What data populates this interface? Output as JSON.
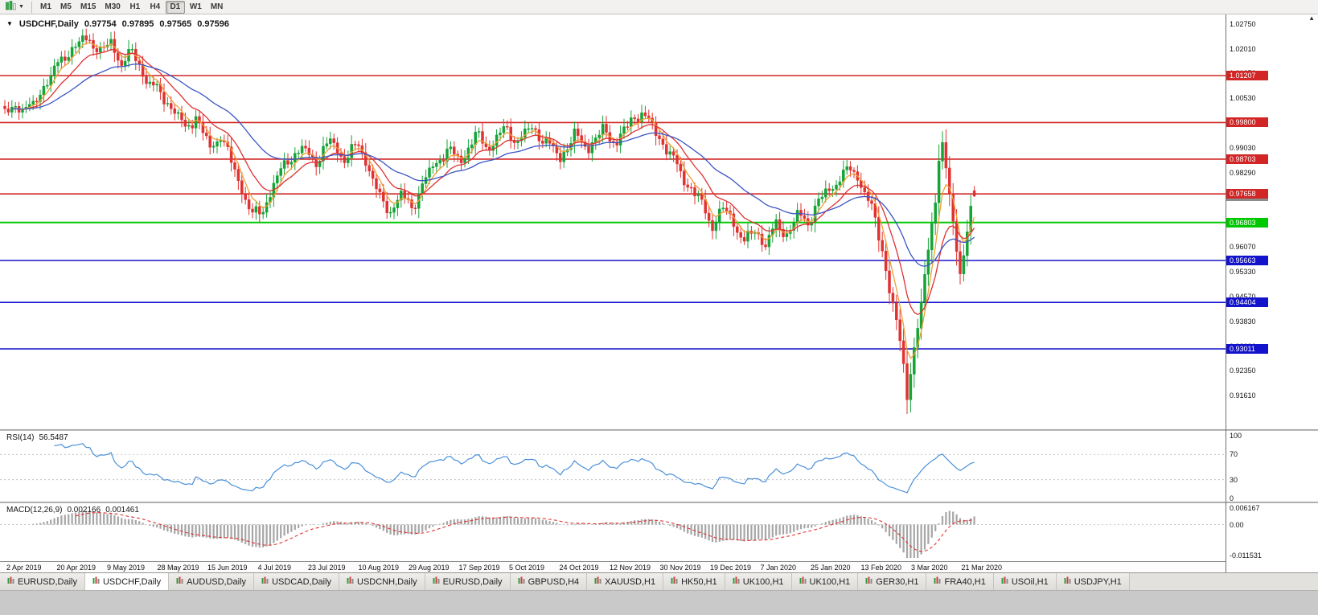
{
  "icons": {
    "dropdown_arrow": "▼",
    "up_arrow": "▲"
  },
  "toolbar": {
    "timeframes": [
      "M1",
      "M5",
      "M15",
      "M30",
      "H1",
      "H4",
      "D1",
      "W1",
      "MN"
    ],
    "active_timeframe": "D1"
  },
  "chart_data": {
    "type": "candlestick",
    "title": "USDCHF,Daily",
    "ohlc_display": {
      "open": "0.97754",
      "high": "0.97895",
      "low": "0.97565",
      "close": "0.97596"
    },
    "x_labels": [
      "2 Apr 2019",
      "20 Apr 2019",
      "9 May 2019",
      "28 May 2019",
      "15 Jun 2019",
      "4 Jul 2019",
      "23 Jul 2019",
      "10 Aug 2019",
      "29 Aug 2019",
      "17 Sep 2019",
      "5 Oct 2019",
      "24 Oct 2019",
      "12 Nov 2019",
      "30 Nov 2019",
      "19 Dec 2019",
      "7 Jan 2020",
      "25 Jan 2020",
      "13 Feb 2020",
      "3 Mar 2020",
      "21 Mar 2020"
    ],
    "price_axis_ticks": [
      "1.02750",
      "1.02010",
      "1.01270",
      "1.00530",
      "0.99790",
      "0.99030",
      "0.98290",
      "0.97550",
      "0.96810",
      "0.96070",
      "0.95330",
      "0.94570",
      "0.93830",
      "0.93090",
      "0.92350",
      "0.91610"
    ],
    "price_scale": {
      "top": 1.0304,
      "bottom": 0.906
    },
    "n_candles": 275,
    "close_keyframes": [
      [
        0,
        1.0005
      ],
      [
        4,
        1.003
      ],
      [
        8,
        1.0025
      ],
      [
        12,
        1.011
      ],
      [
        16,
        1.0165
      ],
      [
        20,
        1.0215
      ],
      [
        24,
        1.0228
      ],
      [
        27,
        1.0195
      ],
      [
        30,
        1.0215
      ],
      [
        33,
        1.016
      ],
      [
        36,
        1.019
      ],
      [
        40,
        1.011
      ],
      [
        44,
        1.0065
      ],
      [
        48,
        1.0015
      ],
      [
        51,
        0.996
      ],
      [
        54,
        1.0
      ],
      [
        58,
        0.99
      ],
      [
        61,
        0.9945
      ],
      [
        64,
        0.986
      ],
      [
        67,
        0.978
      ],
      [
        70,
        0.97
      ],
      [
        73,
        0.9718
      ],
      [
        76,
        0.9795
      ],
      [
        80,
        0.987
      ],
      [
        84,
        0.99
      ],
      [
        88,
        0.9865
      ],
      [
        92,
        0.9925
      ],
      [
        96,
        0.987
      ],
      [
        100,
        0.9915
      ],
      [
        103,
        0.984
      ],
      [
        106,
        0.975
      ],
      [
        109,
        0.9716
      ],
      [
        112,
        0.9762
      ],
      [
        115,
        0.9726
      ],
      [
        118,
        0.979
      ],
      [
        121,
        0.985
      ],
      [
        125,
        0.9895
      ],
      [
        129,
        0.9868
      ],
      [
        133,
        0.994
      ],
      [
        137,
        0.9906
      ],
      [
        141,
        0.996
      ],
      [
        145,
        0.9926
      ],
      [
        149,
        0.9965
      ],
      [
        153,
        0.992
      ],
      [
        157,
        0.9876
      ],
      [
        161,
        0.994
      ],
      [
        165,
        0.9906
      ],
      [
        169,
        0.9955
      ],
      [
        173,
        0.9922
      ],
      [
        177,
        0.9985
      ],
      [
        180,
        1.0012
      ],
      [
        184,
        0.995
      ],
      [
        188,
        0.9886
      ],
      [
        192,
        0.981
      ],
      [
        196,
        0.9752
      ],
      [
        200,
        0.9672
      ],
      [
        203,
        0.9722
      ],
      [
        206,
        0.9682
      ],
      [
        209,
        0.9622
      ],
      [
        212,
        0.9656
      ],
      [
        215,
        0.9616
      ],
      [
        218,
        0.9672
      ],
      [
        221,
        0.9646
      ],
      [
        224,
        0.97
      ],
      [
        227,
        0.9682
      ],
      [
        230,
        0.9745
      ],
      [
        233,
        0.9776
      ],
      [
        236,
        0.9816
      ],
      [
        239,
        0.984
      ],
      [
        242,
        0.98
      ],
      [
        245,
        0.972
      ],
      [
        248,
        0.96
      ],
      [
        250,
        0.948
      ],
      [
        252,
        0.938
      ],
      [
        254,
        0.925
      ],
      [
        255,
        0.917
      ],
      [
        257,
        0.93
      ],
      [
        259,
        0.943
      ],
      [
        261,
        0.96
      ],
      [
        263,
        0.976
      ],
      [
        264,
        0.987
      ],
      [
        265,
        0.9902
      ],
      [
        266,
        0.984
      ],
      [
        268,
        0.968
      ],
      [
        270,
        0.9532
      ],
      [
        272,
        0.965
      ],
      [
        274,
        0.97596
      ]
    ],
    "noise_terms": [
      [
        0.0012,
        0.9,
        0.8
      ],
      [
        0.0008,
        2.3,
        2.0
      ],
      [
        0.0005,
        4.7,
        0.0
      ]
    ],
    "wick_terms": {
      "base": 0.0007,
      "amp": 0.0011,
      "freq": 3.7,
      "phase": 1.0,
      "body_factor": 0.28
    },
    "last_candle": {
      "open": 0.97754,
      "high": 0.97895,
      "low": 0.97565,
      "close": 0.97596
    },
    "candle_colors": {
      "up": "#16a337",
      "down": "#e03232"
    },
    "moving_averages": [
      {
        "type": "ema",
        "period": 5,
        "color": "#efa036"
      },
      {
        "type": "ema",
        "period": 13,
        "color": "#de3232"
      },
      {
        "type": "ema",
        "period": 34,
        "color": "#3b55c4"
      }
    ],
    "levels": [
      {
        "value": 1.01207,
        "label": "1.01207",
        "color": "#d22626",
        "width": 1.6
      },
      {
        "value": 0.998,
        "label": "0.99800",
        "color": "#d22626",
        "width": 1.6
      },
      {
        "value": 0.98703,
        "label": "0.98703",
        "color": "#d22626",
        "width": 1.6
      },
      {
        "value": 0.97658,
        "label": "0.97658",
        "color": "#d22626",
        "width": 1.6
      },
      {
        "value": 0.96803,
        "label": "0.96803",
        "color": "#00c800",
        "width": 2
      },
      {
        "value": 0.95663,
        "label": "0.95663",
        "color": "#1313cc",
        "width": 1.6
      },
      {
        "value": 0.94404,
        "label": "0.94404",
        "color": "#1313cc",
        "width": 1.6
      },
      {
        "value": 0.93011,
        "label": "0.93011",
        "color": "#1313cc",
        "width": 1.6
      }
    ],
    "current_price_tag": {
      "value": 0.97596,
      "label": "0.97596",
      "color": "#8c8c8c"
    },
    "indicators": {
      "rsi": {
        "label": "RSI(14)",
        "value": "56.5487",
        "period": 14,
        "color": "#4a90d9",
        "axis_ticks": [
          100,
          70,
          30,
          0
        ],
        "guide_levels": [
          70,
          30
        ],
        "range": [
          0,
          100
        ]
      },
      "macd": {
        "label": "MACD(12,26,9)",
        "value_main": "0.002166",
        "value_signal": "0.001461",
        "fast": 12,
        "slow": 26,
        "signal": 9,
        "histogram_color": "#a6a6a6",
        "signal_color": "#e03232",
        "axis_ticks": [
          {
            "label": "0.006167",
            "value": 0.006167
          },
          {
            "label": "0.00",
            "value": 0
          },
          {
            "label": "-0.011531",
            "value": -0.011531
          }
        ],
        "scale": {
          "top": 0.0068,
          "bottom": -0.0125
        }
      }
    }
  },
  "tabs": {
    "active_index": 1,
    "items": [
      {
        "label": "EURUSD,Daily"
      },
      {
        "label": "USDCHF,Daily"
      },
      {
        "label": "AUDUSD,Daily"
      },
      {
        "label": "USDCAD,Daily"
      },
      {
        "label": "USDCNH,Daily"
      },
      {
        "label": "EURUSD,Daily"
      },
      {
        "label": "GBPUSD,H4"
      },
      {
        "label": "XAUUSD,H1"
      },
      {
        "label": "HK50,H1"
      },
      {
        "label": "UK100,H1"
      },
      {
        "label": "UK100,H1"
      },
      {
        "label": "GER30,H1"
      },
      {
        "label": "FRA40,H1"
      },
      {
        "label": "USOil,H1"
      },
      {
        "label": "USDJPY,H1"
      }
    ]
  }
}
